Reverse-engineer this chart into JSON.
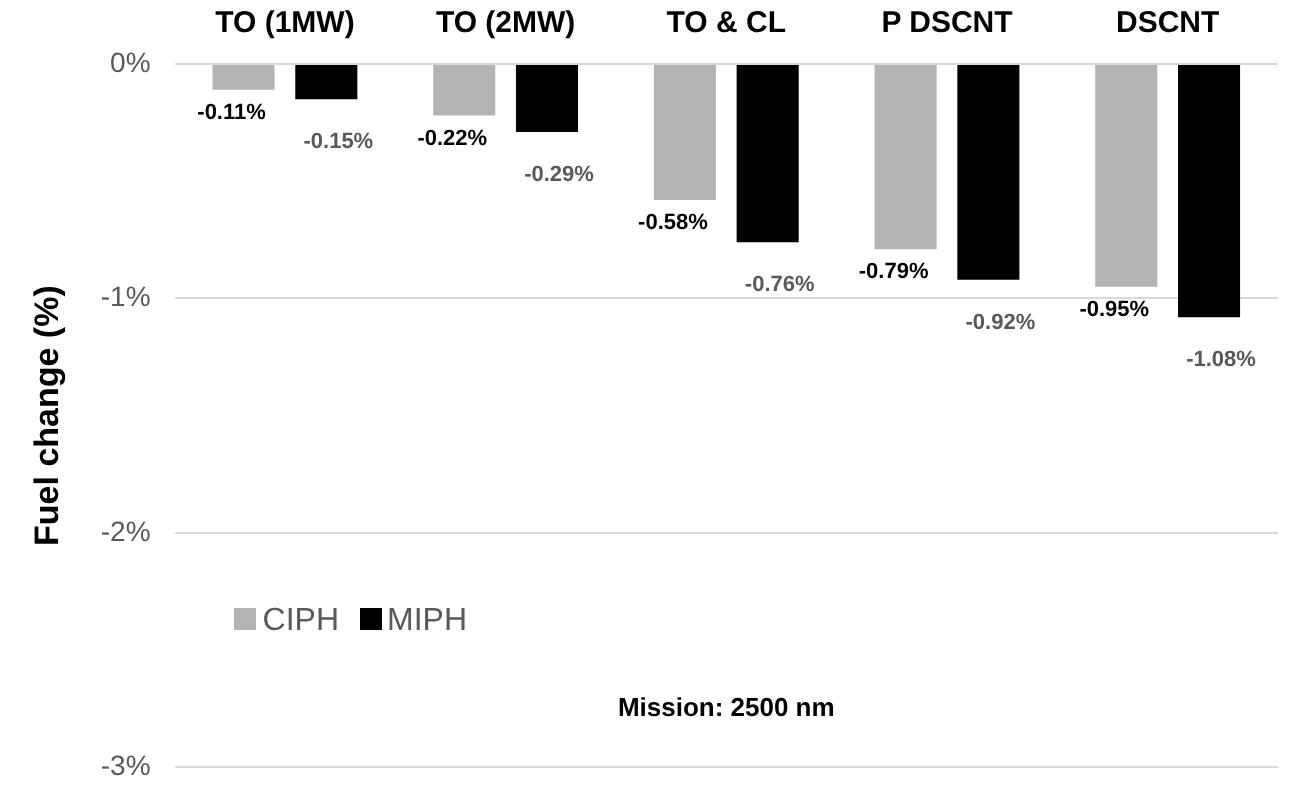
{
  "chart_data": {
    "type": "bar",
    "ylabel": "Fuel change (%)",
    "categories": [
      "TO (1MW)",
      "TO (2MW)",
      "TO & CL",
      "P DSCNT",
      "DSCNT"
    ],
    "series": [
      {
        "name": "CIPH",
        "color": "#b3b3b3",
        "values": [
          -0.11,
          -0.22,
          -0.58,
          -0.79,
          -0.95
        ],
        "value_labels": [
          "-0.11%",
          "-0.22%",
          "-0.58%",
          "-0.79%",
          "-0.95%"
        ]
      },
      {
        "name": "MIPH",
        "color": "#000000",
        "values": [
          -0.15,
          -0.29,
          -0.76,
          -0.92,
          -1.08
        ],
        "value_labels": [
          "-0.15%",
          "-0.29%",
          "-0.76%",
          "-0.92%",
          "-1.08%"
        ]
      }
    ],
    "ylim": [
      -3,
      0
    ],
    "yticks": [
      {
        "value": 0,
        "label": "0%"
      },
      {
        "value": -1,
        "label": "-1%"
      },
      {
        "value": -2,
        "label": "-2%"
      },
      {
        "value": -3,
        "label": "-3%"
      }
    ],
    "grid": "y",
    "legend": "bottom left",
    "annotations": [
      "Mission: 2500 nm"
    ]
  }
}
